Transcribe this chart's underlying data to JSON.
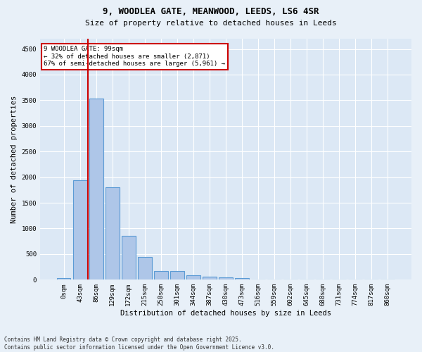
{
  "title_line1": "9, WOODLEA GATE, MEANWOOD, LEEDS, LS6 4SR",
  "title_line2": "Size of property relative to detached houses in Leeds",
  "xlabel": "Distribution of detached houses by size in Leeds",
  "ylabel": "Number of detached properties",
  "bar_labels": [
    "0sqm",
    "43sqm",
    "86sqm",
    "129sqm",
    "172sqm",
    "215sqm",
    "258sqm",
    "301sqm",
    "344sqm",
    "387sqm",
    "430sqm",
    "473sqm",
    "516sqm",
    "559sqm",
    "602sqm",
    "645sqm",
    "688sqm",
    "731sqm",
    "774sqm",
    "817sqm",
    "860sqm"
  ],
  "bar_values": [
    30,
    1940,
    3530,
    1800,
    855,
    450,
    170,
    165,
    90,
    60,
    45,
    35,
    0,
    0,
    0,
    0,
    0,
    0,
    0,
    0,
    0
  ],
  "bar_color": "#aec6e8",
  "bar_edge_color": "#5b9bd5",
  "vline_color": "#cc0000",
  "annotation_text": "9 WOODLEA GATE: 99sqm\n← 32% of detached houses are smaller (2,871)\n67% of semi-detached houses are larger (5,961) →",
  "annotation_box_color": "#ffffff",
  "annotation_box_edge": "#cc0000",
  "ylim": [
    0,
    4700
  ],
  "yticks": [
    0,
    500,
    1000,
    1500,
    2000,
    2500,
    3000,
    3500,
    4000,
    4500
  ],
  "footnote": "Contains HM Land Registry data © Crown copyright and database right 2025.\nContains public sector information licensed under the Open Government Licence v3.0.",
  "bg_color": "#e8f0f8",
  "plot_bg_color": "#dce8f5",
  "grid_color": "#ffffff",
  "title_fontsize": 9,
  "subtitle_fontsize": 8,
  "ylabel_fontsize": 7.5,
  "xlabel_fontsize": 7.5,
  "tick_fontsize": 6.5,
  "footnote_fontsize": 5.5
}
